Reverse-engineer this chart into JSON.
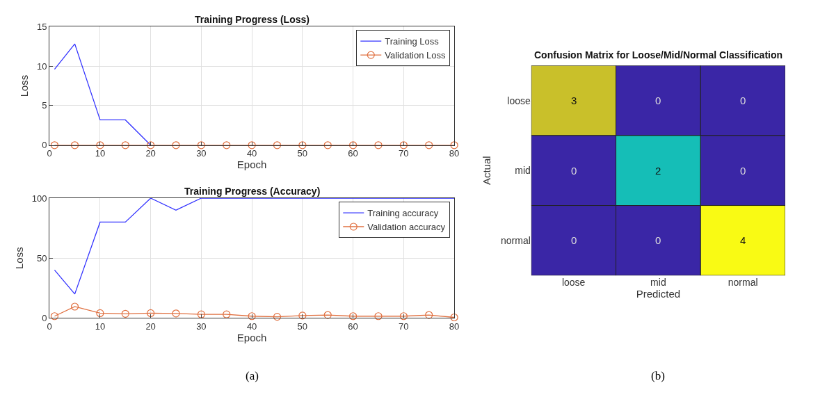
{
  "chart_data": [
    {
      "type": "line",
      "title": "Training Progress (Loss)",
      "xlabel": "Epoch",
      "ylabel": "Loss",
      "xlim": [
        0,
        80
      ],
      "xticks": [
        0,
        10,
        20,
        30,
        40,
        50,
        60,
        70,
        80
      ],
      "ylim": [
        0,
        15
      ],
      "yticks": [
        0,
        5,
        10,
        15
      ],
      "grid": true,
      "legend": "top right",
      "series": [
        {
          "name": "Training Loss",
          "color": "#3333ff",
          "marker": "none",
          "x": [
            1,
            5,
            10,
            15,
            20
          ],
          "values": [
            9.6,
            12.8,
            3.2,
            3.2,
            0
          ]
        },
        {
          "name": "Validation Loss",
          "color": "#e07040",
          "marker": "circle",
          "x": [
            1,
            5,
            10,
            15,
            20,
            25,
            30,
            35,
            40,
            45,
            50,
            55,
            60,
            65,
            70,
            75,
            80
          ],
          "values": [
            0,
            0,
            0,
            0,
            0,
            0,
            0,
            0,
            0,
            0,
            0,
            0,
            0,
            0,
            0,
            0,
            0
          ]
        }
      ]
    },
    {
      "type": "line",
      "title": "Training Progress (Accuracy)",
      "xlabel": "Epoch",
      "ylabel": "Loss",
      "xlim": [
        0,
        80
      ],
      "xticks": [
        0,
        10,
        20,
        30,
        40,
        50,
        60,
        70,
        80
      ],
      "ylim": [
        0,
        100
      ],
      "yticks": [
        0,
        50,
        100
      ],
      "grid": true,
      "legend": "top right",
      "annotations": [
        "(a)"
      ],
      "series": [
        {
          "name": "Training accuracy",
          "color": "#3333ff",
          "marker": "none",
          "x": [
            1,
            5,
            10,
            15,
            20,
            25,
            30,
            35,
            40,
            45,
            50,
            55,
            60,
            65,
            70,
            75,
            80
          ],
          "values": [
            40,
            20,
            80,
            80,
            100,
            90,
            100,
            100,
            100,
            100,
            100,
            100,
            100,
            100,
            100,
            100,
            100
          ]
        },
        {
          "name": "Validation accuracy",
          "color": "#e07040",
          "marker": "circle",
          "x": [
            1,
            5,
            10,
            15,
            20,
            25,
            30,
            35,
            40,
            45,
            50,
            55,
            60,
            65,
            70,
            75,
            80
          ],
          "values": [
            1.5,
            9.5,
            4,
            3.5,
            4,
            3.8,
            3,
            3,
            1.5,
            1,
            2,
            2.5,
            1.5,
            1.5,
            1.5,
            2.5,
            0.5
          ]
        }
      ]
    },
    {
      "type": "heatmap",
      "title": "Confusion Matrix for Loose/Mid/Normal Classification",
      "xlabel": "Predicted",
      "ylabel": "Actual",
      "categories": [
        "loose",
        "mid",
        "normal"
      ],
      "y_categories": [
        "loose",
        "mid",
        "normal"
      ],
      "data_labels": true,
      "annotations": [
        "(b)"
      ],
      "cells": [
        [
          3,
          0,
          0
        ],
        [
          0,
          2,
          0
        ],
        [
          0,
          0,
          4
        ]
      ]
    }
  ]
}
